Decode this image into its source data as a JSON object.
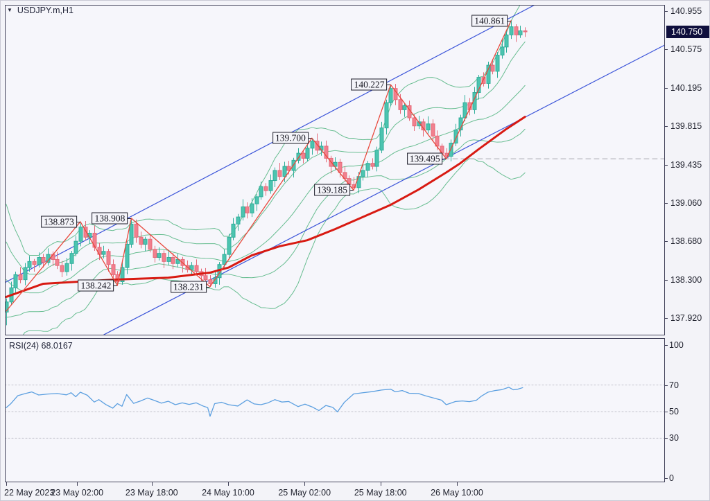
{
  "window": {
    "symbol_label": "USDJPY.m,H1",
    "collapse_icon": "▼"
  },
  "colors": {
    "background": "#f3f3f8",
    "plot_bg": "#f6f6fb",
    "border": "#43435a",
    "text": "#20222e",
    "candle_bull": "#4cc4b0",
    "candle_bull_edge": "#2fae9a",
    "candle_bear": "#f2808e",
    "candle_bear_edge": "#e56a79",
    "band_green": "#67bd90",
    "trend_blue": "#3c55d9",
    "ma_red": "#d81a12",
    "zigzag_red": "#e8483c",
    "dashed_gray": "#a8a8b0",
    "rsi_blue": "#5b9fe0",
    "guide_gray": "#c4c4cc",
    "current_price_bg": "#0f0f3d",
    "current_price_text": "#ffffff",
    "label_box_bg": "#f4f4f9",
    "label_box_border": "#1c1c28"
  },
  "chart_data": [
    {
      "type": "candlestick",
      "panel": "main",
      "symbol": "USDJPY.m",
      "timeframe": "H1",
      "price_axis": {
        "ticks": [
          "140.955",
          "140.575",
          "140.195",
          "139.815",
          "139.435",
          "139.060",
          "138.680",
          "138.300",
          "137.920"
        ],
        "tick_values": [
          140.955,
          140.575,
          140.195,
          139.815,
          139.435,
          139.06,
          138.68,
          138.3,
          137.92
        ],
        "current_label": "140.750",
        "current_value": 140.75
      },
      "time_axis": {
        "labels": [
          {
            "text": "22 May 2023",
            "i": 0
          },
          {
            "text": "23 May 02:00",
            "i": 15.3
          },
          {
            "text": "23 May 18:00",
            "i": 31.4
          },
          {
            "text": "24 May 10:00",
            "i": 47.9
          },
          {
            "text": "25 May 02:00",
            "i": 64.4
          },
          {
            "text": "25 May 18:00",
            "i": 80.8
          },
          {
            "text": "26 May 10:00",
            "i": 97.3
          }
        ]
      },
      "candles": {
        "first_open": 137.98,
        "closes": [
          138.08,
          138.22,
          138.35,
          138.3,
          138.42,
          138.48,
          138.45,
          138.52,
          138.47,
          138.55,
          138.5,
          138.44,
          138.38,
          138.46,
          138.56,
          138.68,
          138.82,
          138.72,
          138.76,
          138.62,
          138.55,
          138.58,
          138.45,
          138.35,
          138.28,
          138.42,
          138.65,
          138.85,
          138.72,
          138.65,
          138.7,
          138.6,
          138.52,
          138.56,
          138.48,
          138.52,
          138.46,
          138.5,
          138.44,
          138.4,
          138.44,
          138.38,
          138.34,
          138.3,
          138.26,
          138.32,
          138.45,
          138.55,
          138.72,
          138.85,
          138.92,
          139.02,
          138.96,
          139.05,
          139.12,
          139.22,
          139.18,
          139.28,
          139.38,
          139.32,
          139.42,
          139.38,
          139.48,
          139.55,
          139.5,
          139.6,
          139.67,
          139.58,
          139.62,
          139.5,
          139.42,
          139.46,
          139.36,
          139.3,
          139.24,
          139.21,
          139.32,
          139.38,
          139.45,
          139.42,
          139.58,
          139.8,
          140.05,
          140.19,
          140.08,
          139.98,
          140.02,
          139.9,
          139.82,
          139.86,
          139.78,
          139.84,
          139.72,
          139.62,
          139.55,
          139.52,
          139.65,
          139.78,
          139.9,
          140.05,
          139.98,
          140.15,
          140.3,
          140.24,
          140.42,
          140.36,
          140.52,
          140.6,
          140.72,
          140.8,
          140.72,
          140.76,
          140.75
        ],
        "swing_highs": {
          "16": 138.873,
          "27": 138.908,
          "66": 139.7,
          "83": 140.227,
          "109": 140.861
        },
        "swing_lows": {
          "0": 137.85,
          "24": 138.242,
          "44": 138.231,
          "75": 139.185,
          "95": 139.495
        }
      },
      "pre_history_closes": [
        139.05,
        139.12,
        138.95,
        138.82,
        138.88,
        138.62,
        138.45,
        138.52,
        138.2,
        138.05,
        137.95,
        138.12,
        137.9,
        138.02,
        138.15,
        137.95,
        138.05,
        138.12,
        138.0,
        138.06
      ],
      "bollinger": {
        "period": 20,
        "deviations": [
          1,
          2
        ]
      },
      "ma_red_points": [
        [
          0,
          138.13
        ],
        [
          8,
          138.26
        ],
        [
          23,
          138.3
        ],
        [
          29,
          138.31
        ],
        [
          35,
          138.32
        ],
        [
          44,
          138.37
        ],
        [
          48,
          138.42
        ],
        [
          53,
          138.54
        ],
        [
          59,
          138.63
        ],
        [
          65,
          138.69
        ],
        [
          71,
          138.8
        ],
        [
          77,
          138.92
        ],
        [
          83,
          139.04
        ],
        [
          89,
          139.19
        ],
        [
          95,
          139.36
        ],
        [
          98,
          139.45
        ],
        [
          102,
          139.59
        ],
        [
          105,
          139.69
        ],
        [
          108,
          139.79
        ],
        [
          112,
          139.91
        ]
      ],
      "zigzag_points": [
        [
          0,
          137.99
        ],
        [
          16,
          138.873
        ],
        [
          24,
          138.242
        ],
        [
          27,
          138.908
        ],
        [
          44,
          138.231
        ],
        [
          66,
          139.7
        ],
        [
          75,
          139.185
        ],
        [
          83,
          140.227
        ],
        [
          95,
          139.495
        ],
        [
          109,
          140.861
        ]
      ],
      "swing_labels": [
        {
          "text": "138.873",
          "i": 16,
          "price": 138.873
        },
        {
          "text": "138.242",
          "i": 24,
          "price": 138.242
        },
        {
          "text": "138.908",
          "i": 27,
          "price": 138.908
        },
        {
          "text": "138.231",
          "i": 44,
          "price": 138.231
        },
        {
          "text": "139.700",
          "i": 66,
          "price": 139.7
        },
        {
          "text": "139.185",
          "i": 75,
          "price": 139.185
        },
        {
          "text": "140.227",
          "i": 83,
          "price": 140.227
        },
        {
          "text": "139.495",
          "i": 95,
          "price": 139.495
        },
        {
          "text": "140.861",
          "i": 109,
          "price": 140.861
        }
      ],
      "trendlines": [
        {
          "from": [
            -1.2,
            138.25
          ],
          "to": [
            115.1,
            141.04
          ]
        },
        {
          "from": [
            21.1,
            137.757
          ],
          "to": [
            142.2,
            140.62
          ]
        }
      ],
      "dashed_level": {
        "price": 139.495,
        "from_i": 94.6
      }
    },
    {
      "type": "line",
      "panel": "indicator",
      "title": "RSI(24) 68.0167",
      "name": "RSI",
      "period": 24,
      "last_value": 68.0167,
      "value_axis": {
        "ticks": [
          "100",
          "70",
          "50",
          "30",
          "0"
        ],
        "tick_values": [
          100,
          70,
          50,
          30,
          0
        ],
        "range": [
          0,
          100
        ]
      },
      "guides": [
        70,
        50,
        30
      ],
      "series": [
        [
          0,
          53
        ],
        [
          1,
          56
        ],
        [
          2.5,
          62
        ],
        [
          4,
          63.5
        ],
        [
          5.5,
          64.8
        ],
        [
          7,
          62.5
        ],
        [
          9,
          63.2
        ],
        [
          11,
          63.6
        ],
        [
          13,
          62.6
        ],
        [
          14,
          64.2
        ],
        [
          15,
          61.2
        ],
        [
          16,
          64.6
        ],
        [
          17.5,
          62.3
        ],
        [
          19,
          57.2
        ],
        [
          20,
          59
        ],
        [
          21.5,
          55.3
        ],
        [
          23,
          52.6
        ],
        [
          24,
          56
        ],
        [
          25,
          54
        ],
        [
          26,
          62.8
        ],
        [
          27.5,
          56.2
        ],
        [
          29,
          58
        ],
        [
          30.5,
          60.2
        ],
        [
          32,
          58.4
        ],
        [
          33.5,
          56.4
        ],
        [
          35,
          57.8
        ],
        [
          36.5,
          55.2
        ],
        [
          38,
          56.6
        ],
        [
          39.5,
          55.4
        ],
        [
          41,
          56.6
        ],
        [
          42.5,
          54.2
        ],
        [
          43.5,
          53
        ],
        [
          44,
          46.5
        ],
        [
          45,
          56
        ],
        [
          46.5,
          57
        ],
        [
          48,
          55.2
        ],
        [
          50,
          54.2
        ],
        [
          52,
          58.8
        ],
        [
          53.5,
          55.8
        ],
        [
          55,
          55.2
        ],
        [
          56.5,
          56.6
        ],
        [
          58,
          59
        ],
        [
          59.5,
          57.2
        ],
        [
          61,
          57.6
        ],
        [
          63,
          53.8
        ],
        [
          64.5,
          55.6
        ],
        [
          66,
          53.6
        ],
        [
          67.5,
          50.8
        ],
        [
          69,
          54.6
        ],
        [
          70.5,
          53.2
        ],
        [
          71.5,
          49.8
        ],
        [
          73,
          57
        ],
        [
          75,
          63.3
        ],
        [
          77,
          64.2
        ],
        [
          79,
          65
        ],
        [
          81,
          66.2
        ],
        [
          83,
          66.9
        ],
        [
          84,
          64.9
        ],
        [
          85.5,
          65.8
        ],
        [
          87,
          63.8
        ],
        [
          89,
          63.6
        ],
        [
          90.5,
          61.9
        ],
        [
          92,
          60.5
        ],
        [
          94,
          58.6
        ],
        [
          95,
          55.2
        ],
        [
          96,
          56.4
        ],
        [
          97,
          57.6
        ],
        [
          98.5,
          58
        ],
        [
          100,
          57.5
        ],
        [
          101.5,
          58.5
        ],
        [
          102.5,
          61.4
        ],
        [
          104,
          64.6
        ],
        [
          105.5,
          65.8
        ],
        [
          107,
          66.5
        ],
        [
          108.5,
          68.3
        ],
        [
          109.5,
          66.4
        ],
        [
          110.5,
          66.9
        ],
        [
          111.5,
          68
        ]
      ]
    }
  ]
}
